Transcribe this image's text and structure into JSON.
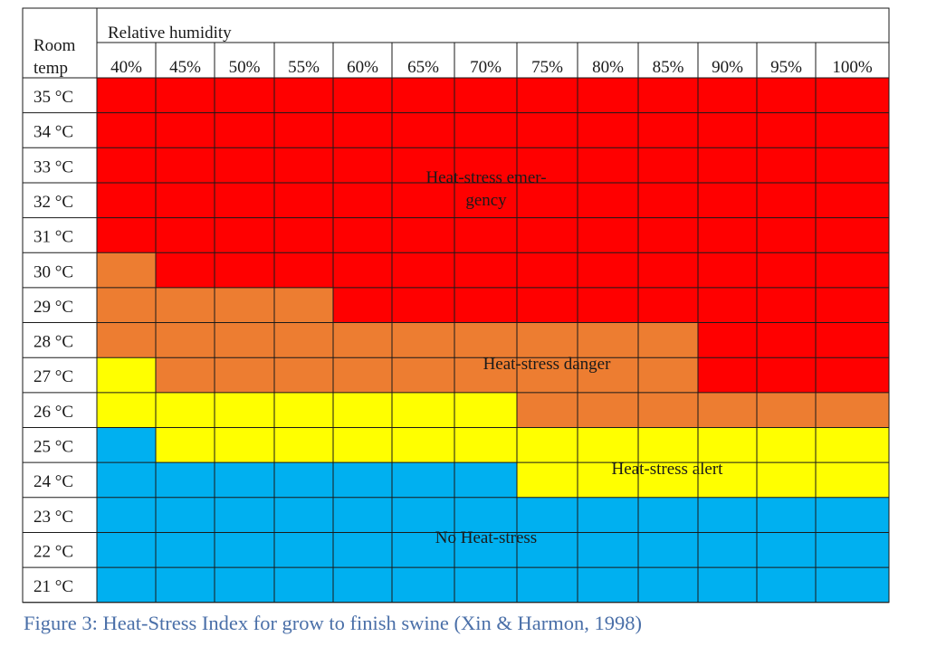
{
  "chart_data": {
    "type": "heatmap",
    "corner_label": [
      "Room",
      "temp"
    ],
    "column_group_label": "Relative humidity",
    "columns": [
      "40%",
      "45%",
      "50%",
      "55%",
      "60%",
      "65%",
      "70%",
      "75%",
      "80%",
      "85%",
      "90%",
      "95%",
      "100%"
    ],
    "rows": [
      "35 °C",
      "34 °C",
      "33 °C",
      "32 °C",
      "31 °C",
      "30 °C",
      "29 °C",
      "28 °C",
      "27 °C",
      "26 °C",
      "25 °C",
      "24 °C",
      "23 °C",
      "22 °C",
      "21 °C"
    ],
    "categories": {
      "emergency": {
        "color": "#ff0000"
      },
      "danger": {
        "color": "#ed7d31"
      },
      "alert": {
        "color": "#ffff00"
      },
      "none": {
        "color": "#00b0f0"
      }
    },
    "cells": [
      [
        "emergency",
        "emergency",
        "emergency",
        "emergency",
        "emergency",
        "emergency",
        "emergency",
        "emergency",
        "emergency",
        "emergency",
        "emergency",
        "emergency",
        "emergency"
      ],
      [
        "emergency",
        "emergency",
        "emergency",
        "emergency",
        "emergency",
        "emergency",
        "emergency",
        "emergency",
        "emergency",
        "emergency",
        "emergency",
        "emergency",
        "emergency"
      ],
      [
        "emergency",
        "emergency",
        "emergency",
        "emergency",
        "emergency",
        "emergency",
        "emergency",
        "emergency",
        "emergency",
        "emergency",
        "emergency",
        "emergency",
        "emergency"
      ],
      [
        "emergency",
        "emergency",
        "emergency",
        "emergency",
        "emergency",
        "emergency",
        "emergency",
        "emergency",
        "emergency",
        "emergency",
        "emergency",
        "emergency",
        "emergency"
      ],
      [
        "emergency",
        "emergency",
        "emergency",
        "emergency",
        "emergency",
        "emergency",
        "emergency",
        "emergency",
        "emergency",
        "emergency",
        "emergency",
        "emergency",
        "emergency"
      ],
      [
        "danger",
        "emergency",
        "emergency",
        "emergency",
        "emergency",
        "emergency",
        "emergency",
        "emergency",
        "emergency",
        "emergency",
        "emergency",
        "emergency",
        "emergency"
      ],
      [
        "danger",
        "danger",
        "danger",
        "danger",
        "emergency",
        "emergency",
        "emergency",
        "emergency",
        "emergency",
        "emergency",
        "emergency",
        "emergency",
        "emergency"
      ],
      [
        "danger",
        "danger",
        "danger",
        "danger",
        "danger",
        "danger",
        "danger",
        "danger",
        "danger",
        "danger",
        "emergency",
        "emergency",
        "emergency"
      ],
      [
        "alert",
        "danger",
        "danger",
        "danger",
        "danger",
        "danger",
        "danger",
        "danger",
        "danger",
        "danger",
        "emergency",
        "emergency",
        "emergency"
      ],
      [
        "alert",
        "alert",
        "alert",
        "alert",
        "alert",
        "alert",
        "alert",
        "danger",
        "danger",
        "danger",
        "danger",
        "danger",
        "danger"
      ],
      [
        "none",
        "alert",
        "alert",
        "alert",
        "alert",
        "alert",
        "alert",
        "alert",
        "alert",
        "alert",
        "alert",
        "alert",
        "alert"
      ],
      [
        "none",
        "none",
        "none",
        "none",
        "none",
        "none",
        "none",
        "alert",
        "alert",
        "alert",
        "alert",
        "alert",
        "alert"
      ],
      [
        "none",
        "none",
        "none",
        "none",
        "none",
        "none",
        "none",
        "none",
        "none",
        "none",
        "none",
        "none",
        "none"
      ],
      [
        "none",
        "none",
        "none",
        "none",
        "none",
        "none",
        "none",
        "none",
        "none",
        "none",
        "none",
        "none",
        "none"
      ],
      [
        "none",
        "none",
        "none",
        "none",
        "none",
        "none",
        "none",
        "none",
        "none",
        "none",
        "none",
        "none",
        "none"
      ]
    ],
    "region_labels": [
      {
        "category": "emergency",
        "lines": [
          "Heat-stress emer-",
          "gency"
        ]
      },
      {
        "category": "danger",
        "lines": [
          "Heat-stress danger"
        ]
      },
      {
        "category": "alert",
        "lines": [
          "Heat-stress alert"
        ]
      },
      {
        "category": "none",
        "lines": [
          "No Heat-stress"
        ]
      }
    ]
  },
  "caption": "Figure 3: Heat-Stress Index for grow to finish swine (Xin & Harmon, 1998)"
}
